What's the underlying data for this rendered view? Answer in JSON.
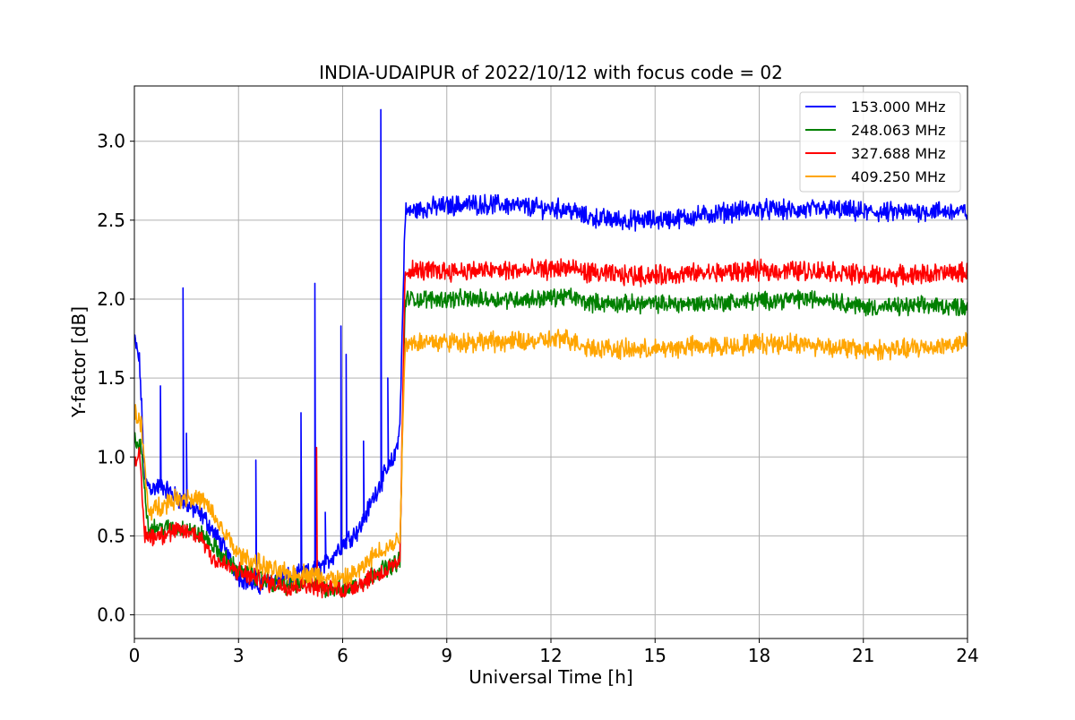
{
  "chart_data": {
    "type": "line",
    "title": "INDIA-UDAIPUR of 2022/10/12 with focus code = 02",
    "xlabel": "Universal Time [h]",
    "ylabel": "Y-factor [dB]",
    "xlim": [
      0,
      24
    ],
    "ylim": [
      -0.15,
      3.35
    ],
    "xticks": [
      0,
      3,
      6,
      9,
      12,
      15,
      18,
      21,
      24
    ],
    "yticks": [
      "0.0",
      "0.5",
      "1.0",
      "1.5",
      "2.0",
      "2.5",
      "3.0"
    ],
    "grid": true,
    "legend_position": "top-right",
    "series": [
      {
        "name": "153.000 MHz",
        "color": "#0000ff",
        "x": [
          0,
          0.15,
          0.3,
          0.5,
          0.8,
          1.0,
          1.5,
          2.0,
          2.5,
          3.0,
          3.5,
          4.0,
          4.5,
          5.0,
          5.5,
          6.0,
          6.5,
          7.0,
          7.5,
          7.65,
          7.8,
          8.5,
          9.5,
          10.5,
          11.5,
          12.5,
          13.0,
          14.0,
          15.0,
          16.0,
          17.0,
          18.0,
          19.0,
          20.0,
          21.0,
          22.0,
          23.0,
          24.0
        ],
        "values": [
          1.75,
          1.6,
          0.85,
          0.8,
          0.82,
          0.78,
          0.7,
          0.62,
          0.45,
          0.25,
          0.18,
          0.22,
          0.24,
          0.26,
          0.32,
          0.45,
          0.55,
          0.8,
          1.0,
          1.2,
          2.55,
          2.58,
          2.6,
          2.6,
          2.58,
          2.57,
          2.52,
          2.5,
          2.5,
          2.52,
          2.55,
          2.57,
          2.56,
          2.57,
          2.55,
          2.55,
          2.56,
          2.55
        ],
        "noise": 0.05,
        "spikes": [
          [
            0.75,
            1.45
          ],
          [
            1.4,
            2.07
          ],
          [
            1.5,
            1.15
          ],
          [
            3.5,
            0.98
          ],
          [
            4.8,
            1.28
          ],
          [
            5.2,
            2.1
          ],
          [
            5.5,
            0.65
          ],
          [
            5.95,
            1.83
          ],
          [
            6.1,
            1.65
          ],
          [
            6.6,
            1.1
          ],
          [
            7.1,
            3.2
          ],
          [
            7.3,
            1.5
          ]
        ]
      },
      {
        "name": "248.063 MHz",
        "color": "#008000",
        "x": [
          0,
          0.2,
          0.4,
          1.0,
          1.5,
          2.0,
          2.5,
          3.0,
          3.5,
          4.0,
          4.5,
          5.0,
          5.5,
          6.0,
          6.5,
          7.0,
          7.5,
          7.65,
          7.8,
          8.5,
          9.5,
          10.5,
          11.5,
          12.5,
          13.0,
          14.0,
          15.0,
          16.0,
          17.0,
          18.0,
          19.0,
          20.0,
          21.0,
          22.0,
          23.0,
          24.0
        ],
        "values": [
          1.1,
          1.05,
          0.55,
          0.55,
          0.55,
          0.5,
          0.38,
          0.28,
          0.24,
          0.2,
          0.18,
          0.2,
          0.17,
          0.16,
          0.2,
          0.28,
          0.32,
          0.35,
          2.0,
          2.0,
          2.0,
          2.0,
          2.0,
          2.02,
          1.98,
          1.97,
          1.97,
          1.97,
          1.98,
          1.99,
          2.0,
          2.0,
          1.95,
          1.95,
          1.96,
          1.95
        ],
        "noise": 0.045,
        "spikes": []
      },
      {
        "name": "327.688 MHz",
        "color": "#ff0000",
        "x": [
          0,
          0.15,
          0.3,
          0.5,
          1.0,
          1.5,
          1.9,
          2.3,
          3.0,
          3.5,
          4.0,
          4.5,
          5.0,
          5.5,
          6.0,
          6.5,
          7.0,
          7.5,
          7.65,
          7.8,
          8.5,
          9.5,
          10.5,
          11.5,
          12.5,
          13.0,
          14.0,
          15.0,
          16.0,
          17.0,
          18.0,
          19.0,
          20.0,
          21.0,
          22.0,
          23.0,
          24.0
        ],
        "values": [
          1.0,
          1.0,
          0.5,
          0.5,
          0.52,
          0.53,
          0.5,
          0.35,
          0.27,
          0.23,
          0.2,
          0.18,
          0.2,
          0.17,
          0.16,
          0.2,
          0.26,
          0.3,
          0.35,
          2.18,
          2.18,
          2.18,
          2.18,
          2.18,
          2.2,
          2.17,
          2.15,
          2.15,
          2.16,
          2.17,
          2.18,
          2.18,
          2.18,
          2.15,
          2.15,
          2.16,
          2.17
        ],
        "noise": 0.05,
        "spikes": [
          [
            5.25,
            1.06
          ]
        ]
      },
      {
        "name": "409.250 MHz",
        "color": "#ffa500",
        "x": [
          0,
          0.2,
          0.4,
          1.0,
          1.5,
          2.0,
          2.5,
          3.0,
          3.5,
          4.0,
          4.5,
          5.0,
          5.5,
          6.0,
          6.5,
          7.0,
          7.5,
          7.65,
          7.8,
          8.5,
          9.5,
          10.5,
          11.5,
          12.5,
          13.0,
          14.0,
          15.0,
          16.0,
          17.0,
          18.0,
          19.0,
          20.0,
          21.0,
          22.0,
          23.0,
          24.0
        ],
        "values": [
          1.3,
          1.2,
          0.65,
          0.72,
          0.75,
          0.72,
          0.55,
          0.38,
          0.33,
          0.28,
          0.26,
          0.26,
          0.24,
          0.22,
          0.28,
          0.4,
          0.45,
          0.5,
          1.73,
          1.73,
          1.73,
          1.73,
          1.73,
          1.75,
          1.7,
          1.68,
          1.68,
          1.7,
          1.7,
          1.72,
          1.72,
          1.7,
          1.68,
          1.68,
          1.7,
          1.72
        ],
        "noise": 0.05,
        "spikes": []
      }
    ]
  }
}
